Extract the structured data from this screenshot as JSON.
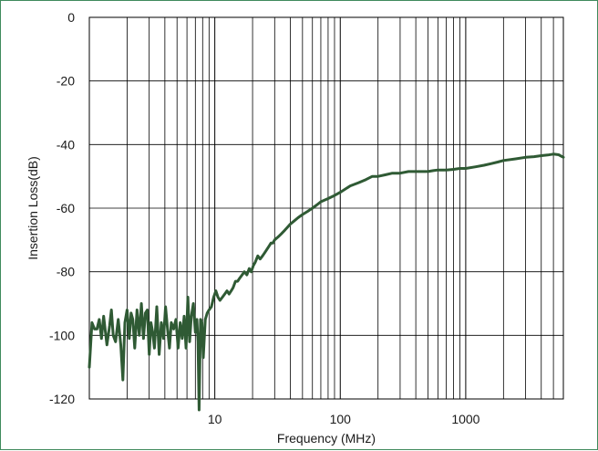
{
  "chart_data": {
    "type": "line",
    "title": "",
    "xlabel": "Frequency (MHz)",
    "ylabel": "Insertion Loss(dB)",
    "xscale": "log",
    "xlim": [
      1,
      6000
    ],
    "ylim": [
      -120,
      0
    ],
    "x_ticks": [
      {
        "value": 10,
        "label": "10"
      },
      {
        "value": 100,
        "label": "100"
      },
      {
        "value": 1000,
        "label": "1000"
      }
    ],
    "y_ticks": [
      {
        "value": 0,
        "label": "0"
      },
      {
        "value": -20,
        "label": "-20"
      },
      {
        "value": -40,
        "label": "-40"
      },
      {
        "value": -60,
        "label": "-60"
      },
      {
        "value": -80,
        "label": "-80"
      },
      {
        "value": -100,
        "label": "-100"
      },
      {
        "value": -120,
        "label": "-120"
      }
    ],
    "grid": true,
    "legend": "none",
    "colors": {
      "line": "#2f5a34",
      "frame": "#3f8a5c",
      "grid": "#000000"
    },
    "series": [
      {
        "x": [
          1.0,
          1.05,
          1.1,
          1.15,
          1.2,
          1.25,
          1.3,
          1.38,
          1.45,
          1.5,
          1.55,
          1.62,
          1.7,
          1.78,
          1.85,
          1.92,
          2.0,
          2.08,
          2.15,
          2.22,
          2.3,
          2.4,
          2.5,
          2.6,
          2.7,
          2.8,
          2.9,
          3.0,
          3.1,
          3.2,
          3.3,
          3.45,
          3.6,
          3.75,
          3.9,
          4.05,
          4.2,
          4.35,
          4.5,
          4.7,
          4.9,
          5.1,
          5.3,
          5.5,
          5.7,
          5.9,
          6.1,
          6.3,
          6.5,
          6.75,
          7.0,
          7.2,
          7.35,
          7.5,
          7.7,
          7.9,
          8.1,
          8.4,
          8.7,
          9.0,
          9.4,
          9.8,
          10.2,
          10.6,
          11.0,
          11.5,
          12.0,
          12.5,
          13.0,
          13.5,
          14.0,
          14.6,
          15.2,
          15.8,
          16.5,
          17.2,
          18.0,
          18.8,
          19.5,
          20.3,
          21.0,
          22.0,
          23.0,
          24.0,
          25.0,
          26.0,
          27.0,
          28.0,
          29.0,
          30.0,
          32.0,
          34.0,
          36.0,
          38.0,
          40.0,
          43.0,
          46.0,
          50.0,
          55.0,
          60.0,
          65.0,
          70.0,
          80.0,
          90.0,
          100,
          120,
          140,
          160,
          180,
          200,
          230,
          260,
          300,
          350,
          400,
          450,
          500,
          550,
          600,
          650,
          700,
          800,
          900,
          1000,
          1200,
          1400,
          1600,
          1800,
          2000,
          2500,
          3000,
          3500,
          4000,
          4500,
          5000,
          5500,
          6000
        ],
        "y": [
          -110,
          -96,
          -98,
          -98,
          -95,
          -101,
          -94,
          -103,
          -97,
          -92,
          -100,
          -102,
          -95,
          -103,
          -114,
          -96,
          -92,
          -101,
          -93,
          -95,
          -104,
          -92,
          -100,
          -90,
          -101,
          -93,
          -92,
          -106,
          -96,
          -99,
          -104,
          -91,
          -106,
          -96,
          -101,
          -91,
          -98,
          -104,
          -96,
          -98,
          -95,
          -104,
          -96,
          -101,
          -94,
          -104,
          -88,
          -102,
          -94,
          -90,
          -99,
          -95,
          -102,
          -124,
          -95,
          -96,
          -107,
          -95,
          -93,
          -92,
          -91,
          -88,
          -86,
          -88,
          -89,
          -88,
          -87,
          -86,
          -87,
          -86,
          -85,
          -83,
          -83,
          -82,
          -81,
          -80,
          -81,
          -79,
          -80,
          -78,
          -77,
          -75,
          -76,
          -75,
          -74,
          -73,
          -72,
          -71,
          -71,
          -70,
          -69,
          -68,
          -67,
          -66,
          -65,
          -64,
          -63,
          -62,
          -61,
          -60,
          -59,
          -58,
          -57,
          -56,
          -55,
          -53,
          -52,
          -51,
          -50,
          -50,
          -49.5,
          -49,
          -49,
          -48.5,
          -48.5,
          -48.5,
          -48.5,
          -48.2,
          -48,
          -48,
          -48,
          -47.8,
          -47.5,
          -47.5,
          -47,
          -46.5,
          -46,
          -45.5,
          -45,
          -44.5,
          -44,
          -43.8,
          -43.5,
          -43.3,
          -43,
          -43.2,
          -44
        ]
      }
    ]
  }
}
